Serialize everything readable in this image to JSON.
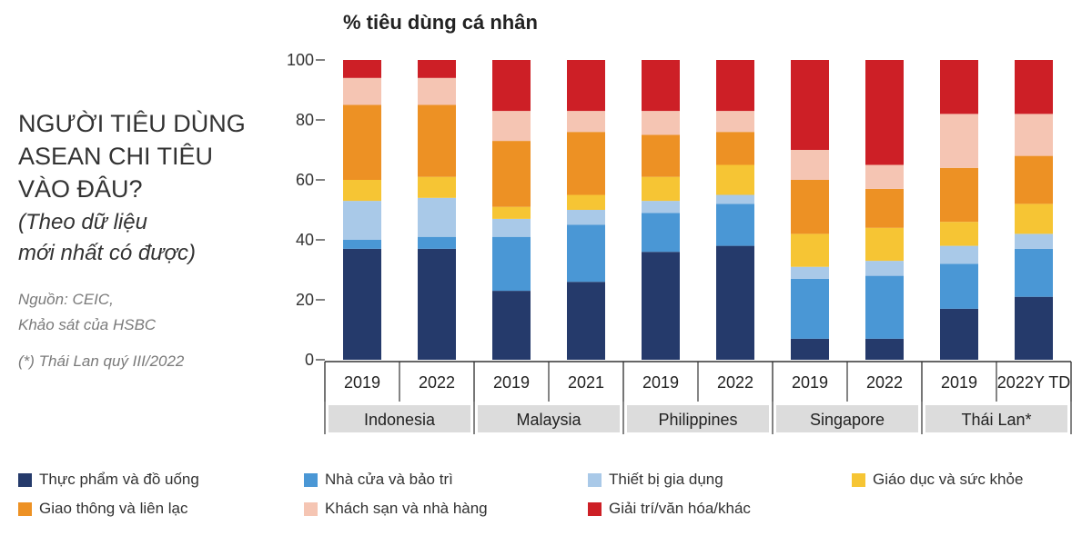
{
  "header": {
    "title_lines": [
      "NGƯỜI TIÊU DÙNG",
      "ASEAN CHI TIÊU",
      "VÀO ĐÂU?"
    ],
    "subtitle_lines": [
      "(Theo dữ liệu",
      "mới nhất có được)"
    ],
    "source_lines": [
      "Nguồn:  CEIC,",
      "Khảo sát của HSBC"
    ],
    "footnote": "(*) Thái Lan quý III/2022"
  },
  "chart_data": {
    "type": "bar",
    "stacked": true,
    "title": "% tiêu dùng cá nhân",
    "ylim": [
      0,
      100
    ],
    "yticks": [
      "0",
      "20",
      "40",
      "60",
      "80",
      "100"
    ],
    "categories": [
      "2019",
      "2022",
      "2019",
      "2021",
      "2019",
      "2022",
      "2019",
      "2022",
      "2019",
      "2022Y TD"
    ],
    "groups": [
      {
        "label": "Indonesia",
        "count": 2
      },
      {
        "label": "Malaysia",
        "count": 2
      },
      {
        "label": "Philippines",
        "count": 2
      },
      {
        "label": "Singapore",
        "count": 2
      },
      {
        "label": "Thái Lan*",
        "count": 2
      }
    ],
    "series": [
      {
        "name": "Thực phẩm và đồ uống",
        "color": "#253a6b",
        "values": [
          37,
          37,
          23,
          26,
          36,
          38,
          7,
          7,
          17,
          21
        ]
      },
      {
        "name": "Nhà cửa và bảo trì",
        "color": "#4a97d5",
        "values": [
          3,
          4,
          18,
          19,
          13,
          14,
          20,
          21,
          15,
          16
        ]
      },
      {
        "name": "Thiết bị gia dụng",
        "color": "#a9c9e8",
        "values": [
          13,
          13,
          6,
          5,
          4,
          3,
          4,
          5,
          6,
          5
        ]
      },
      {
        "name": "Giáo dục và sức khỏe",
        "color": "#f6c534",
        "values": [
          7,
          7,
          4,
          5,
          8,
          10,
          11,
          11,
          8,
          10
        ]
      },
      {
        "name": "Giao thông và liên lạc",
        "color": "#ed9124",
        "values": [
          25,
          24,
          22,
          21,
          14,
          11,
          18,
          13,
          18,
          16
        ]
      },
      {
        "name": "Khách sạn và nhà hàng",
        "color": "#f5c5b3",
        "values": [
          9,
          9,
          10,
          7,
          8,
          7,
          10,
          8,
          18,
          14
        ]
      },
      {
        "name": "Giải trí/văn hóa/khác",
        "color": "#cd1f26",
        "values": [
          6,
          6,
          17,
          17,
          17,
          17,
          30,
          35,
          18,
          18
        ]
      }
    ]
  }
}
